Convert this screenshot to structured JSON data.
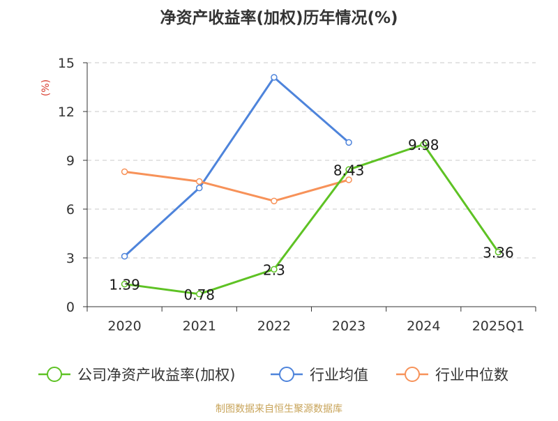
{
  "chart_data": {
    "type": "line",
    "title": "净资产收益率(加权)历年情况(%)",
    "ylabel": "(%)",
    "xlabel": "",
    "categories": [
      "2020",
      "2021",
      "2022",
      "2023",
      "2024",
      "2025Q1"
    ],
    "ylim": [
      0,
      15
    ],
    "yticks": [
      "0",
      "3",
      "6",
      "9",
      "12",
      "15"
    ],
    "grid": true,
    "legend_position": "bottom",
    "series": [
      {
        "name": "公司净资产收益率(加权)",
        "color": "#5ec224",
        "values": [
          1.39,
          0.78,
          2.3,
          8.43,
          9.98,
          3.36
        ],
        "labels": [
          "1.39",
          "0.78",
          "2.3",
          "8.43",
          "9.98",
          "3.36"
        ]
      },
      {
        "name": "行业均值",
        "color": "#4e84db",
        "values": [
          3.1,
          7.3,
          14.1,
          10.1,
          null,
          null
        ]
      },
      {
        "name": "行业中位数",
        "color": "#f79259",
        "values": [
          8.3,
          7.7,
          6.5,
          7.8,
          null,
          null
        ]
      }
    ],
    "source": "制图数据来自恒生聚源数据库"
  }
}
